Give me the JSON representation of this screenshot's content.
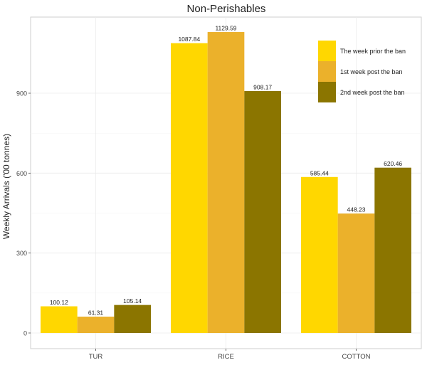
{
  "chart_data": {
    "type": "bar",
    "title": "Non-Perishables",
    "xlabel": "",
    "ylabel": "Weekly Arrivals ('00 tonnes)",
    "categories": [
      "TUR",
      "RICE",
      "COTTON"
    ],
    "series": [
      {
        "name": "The week prior the ban",
        "color": "#FFD700",
        "values": [
          100.12,
          1087.84,
          585.44
        ],
        "labels": [
          "100.12",
          "1087.84",
          "585.44"
        ]
      },
      {
        "name": "1st week post the ban",
        "color": "#EBB12B",
        "values": [
          61.31,
          1129.59,
          448.23
        ],
        "labels": [
          "61.31",
          "1129.59",
          "448.23"
        ]
      },
      {
        "name": "2nd week post the ban",
        "color": "#8B7500",
        "values": [
          105.14,
          908.17,
          620.46
        ],
        "labels": [
          "105.14",
          "908.17",
          "620.46"
        ]
      }
    ],
    "yticks": [
      0,
      300,
      600,
      900
    ],
    "ytick_labels": [
      "0",
      "300",
      "600",
      "900"
    ],
    "ylim": [
      -58,
      1185
    ],
    "grid": true,
    "legend_position": "top-right"
  }
}
